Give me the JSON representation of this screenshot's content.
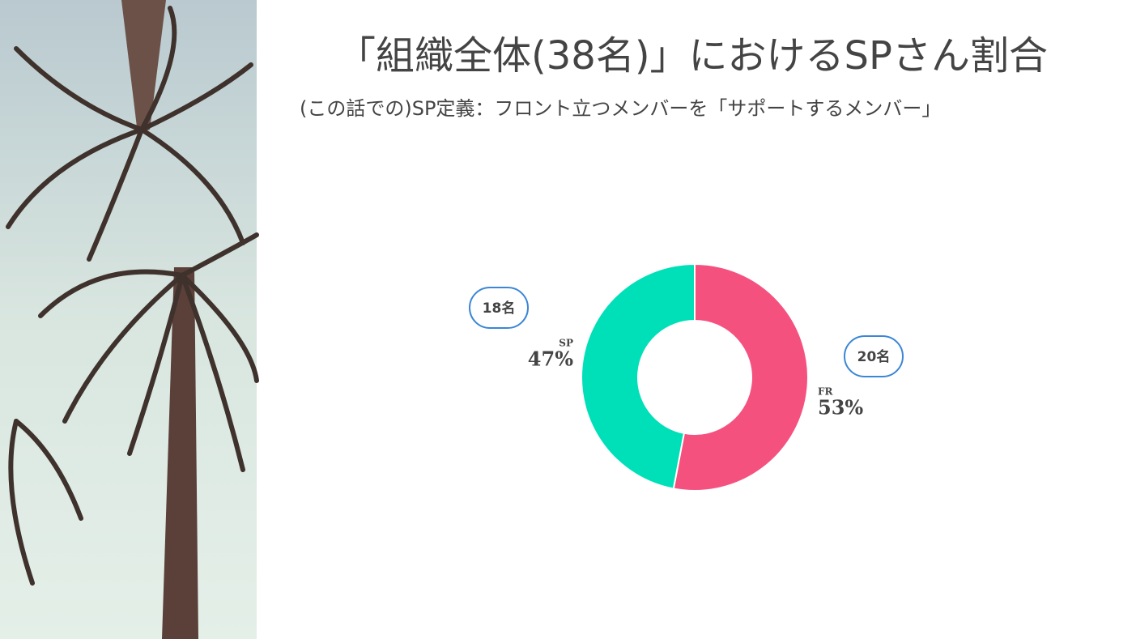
{
  "chart_data": {
    "type": "donut",
    "title": "「組織全体(38名)」におけるSPさん割合",
    "subtitle": "(この話での)SP定義：フロント立つメンバーを「サポートするメンバー」",
    "categories": [
      "FR",
      "SP"
    ],
    "values": [
      53,
      47
    ],
    "value_labels": [
      "53%",
      "47%"
    ],
    "colors": [
      "#f5517f",
      "#00e0b8"
    ],
    "annotations": [
      "20名",
      "18名"
    ]
  }
}
